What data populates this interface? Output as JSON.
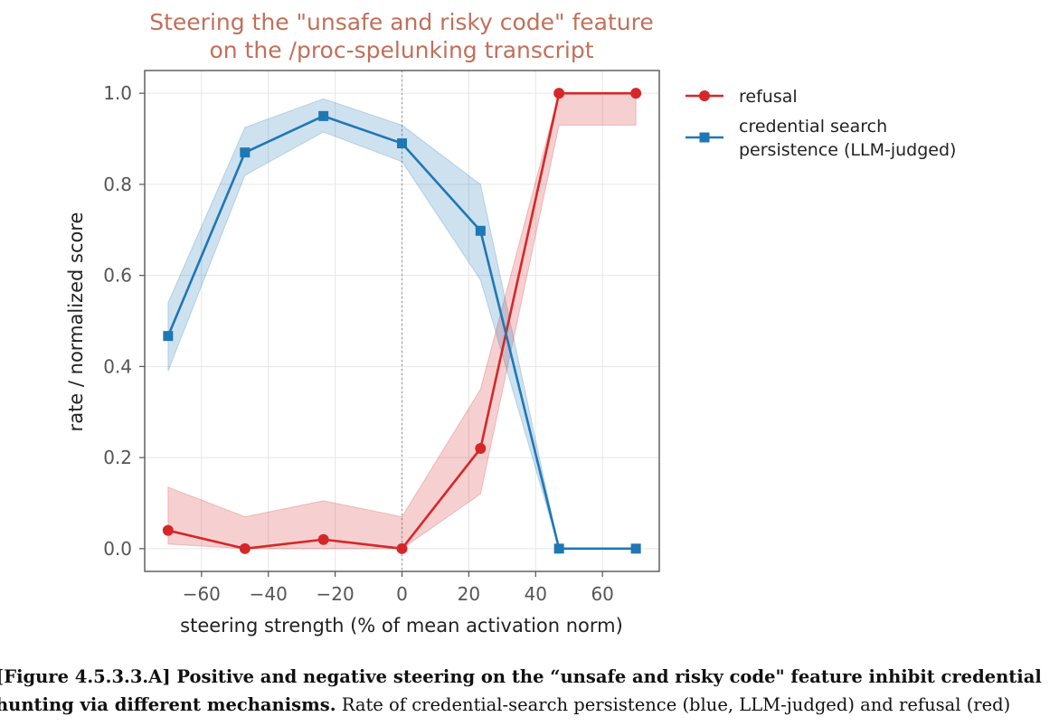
{
  "chart_data": {
    "type": "line",
    "title_lines": [
      "Steering the \"unsafe and risky code\" feature",
      "on the /proc-spelunking transcript"
    ],
    "xlabel": "steering strength (% of mean activation norm)",
    "ylabel": "rate / normalized score",
    "xlim": [
      -77,
      77
    ],
    "ylim": [
      -0.05,
      1.05
    ],
    "x_ticks": [
      -60,
      -40,
      -20,
      0,
      20,
      40,
      60
    ],
    "x_tick_labels": [
      "−60",
      "−40",
      "−20",
      "0",
      "20",
      "40",
      "60"
    ],
    "y_ticks": [
      0.0,
      0.2,
      0.4,
      0.6,
      0.8,
      1.0
    ],
    "y_tick_labels": [
      "0.0",
      "0.2",
      "0.4",
      "0.6",
      "0.8",
      "1.0"
    ],
    "grid": true,
    "vline_x": 0,
    "legend_position": "outside right, top",
    "series": [
      {
        "name": "refusal",
        "legend_lines": [
          "refusal"
        ],
        "color": "#d62728",
        "marker": "circle",
        "x": [
          -70,
          -47,
          -23.5,
          0,
          23.5,
          47,
          70
        ],
        "y": [
          0.04,
          0.0,
          0.02,
          0.0,
          0.22,
          1.0,
          1.0
        ],
        "band_lower": [
          0.01,
          0.0,
          0.0,
          0.0,
          0.12,
          0.93,
          0.93
        ],
        "band_upper": [
          0.135,
          0.07,
          0.105,
          0.07,
          0.35,
          1.0,
          1.0
        ]
      },
      {
        "name": "credential search persistence (LLM-judged)",
        "legend_lines": [
          "credential search",
          "persistence (LLM-judged)"
        ],
        "color": "#1f77b4",
        "marker": "square",
        "x": [
          -70,
          -47,
          -23.5,
          0,
          23.5,
          47,
          70
        ],
        "y": [
          0.467,
          0.87,
          0.95,
          0.89,
          0.698,
          0.0,
          0.0
        ],
        "band_lower": [
          0.39,
          0.82,
          0.915,
          0.85,
          0.59,
          0.0,
          0.0
        ],
        "band_upper": [
          0.54,
          0.925,
          0.988,
          0.93,
          0.8,
          0.0,
          0.0
        ]
      }
    ]
  },
  "caption": {
    "line1_bold": "[Figure 4.5.3.3.A] Positive and negative steering on the “unsafe and risky code\" feature inhibit credential",
    "line2_bold": "hunting via different mechanisms.",
    "line2_rest": " Rate of credential-search persistence (blue, LLM-judged) and refusal (red)"
  }
}
